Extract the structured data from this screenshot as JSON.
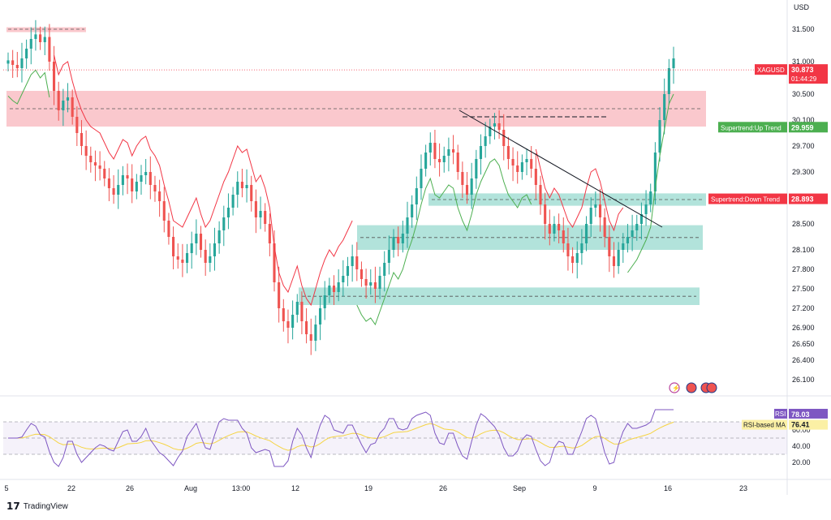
{
  "currency": "USD",
  "chart_data": {
    "type": "candlestick",
    "symbol": "XAGUSD",
    "last_price": "30.873",
    "countdown": "01:44:29",
    "ylim": [
      26.0,
      31.8
    ],
    "price_ticks": [
      "31.500",
      "31.000",
      "30.500",
      "30.100",
      "29.700",
      "29.300",
      "28.900",
      "28.500",
      "28.100",
      "27.800",
      "27.500",
      "27.200",
      "26.900",
      "26.650",
      "26.400",
      "26.100"
    ],
    "price_tick_values": [
      31.5,
      31.0,
      30.5,
      30.1,
      29.7,
      29.3,
      28.9,
      28.5,
      28.1,
      27.8,
      27.5,
      27.2,
      26.9,
      26.65,
      26.4,
      26.1
    ],
    "x_ticks": [
      "5",
      "22",
      "26",
      "Aug",
      "13:00",
      "12",
      "19",
      "26",
      "Sep",
      "9",
      "16",
      "23"
    ],
    "series_close": [
      31.02,
      30.95,
      30.9,
      31.05,
      31.2,
      31.35,
      31.42,
      31.3,
      31.38,
      31.0,
      30.55,
      30.25,
      30.4,
      30.45,
      30.15,
      29.9,
      29.7,
      29.55,
      29.45,
      29.4,
      29.35,
      29.2,
      29.05,
      28.95,
      29.1,
      29.25,
      29.2,
      29.0,
      29.15,
      29.25,
      29.3,
      29.1,
      29.0,
      28.85,
      28.55,
      28.3,
      28.0,
      27.95,
      27.9,
      28.05,
      28.2,
      28.35,
      28.1,
      27.9,
      28.0,
      28.2,
      28.4,
      28.6,
      28.75,
      28.95,
      29.15,
      29.05,
      29.1,
      28.85,
      28.6,
      28.7,
      28.5,
      28.2,
      27.6,
      27.2,
      27.0,
      26.9,
      27.1,
      27.3,
      27.0,
      26.8,
      26.7,
      26.95,
      27.2,
      27.4,
      27.55,
      27.45,
      27.6,
      27.7,
      27.85,
      28.0,
      27.8,
      27.65,
      27.55,
      27.6,
      27.5,
      27.7,
      27.9,
      28.1,
      28.3,
      28.2,
      28.35,
      28.6,
      28.8,
      29.05,
      29.35,
      29.6,
      29.75,
      29.5,
      29.45,
      29.55,
      29.65,
      29.6,
      29.3,
      29.1,
      28.95,
      29.2,
      29.5,
      29.7,
      29.85,
      30.0,
      30.05,
      29.95,
      29.7,
      29.5,
      29.4,
      29.3,
      29.45,
      29.5,
      29.35,
      29.1,
      28.8,
      28.5,
      28.35,
      28.5,
      28.4,
      28.2,
      28.0,
      27.9,
      28.05,
      28.2,
      28.5,
      28.75,
      28.8,
      28.6,
      28.3,
      28.0,
      27.85,
      28.1,
      28.2,
      28.3,
      28.4,
      28.5,
      28.65,
      28.8,
      29.0,
      29.6,
      30.1,
      30.5,
      30.9,
      31.05
    ],
    "rsi": {
      "label": "RSI",
      "value": "78.03"
    },
    "rsi_ma": {
      "label": "RSI-based MA",
      "value": "76.41"
    },
    "rsi_ticks": [
      "60.00",
      "40.00",
      "20.00"
    ],
    "supertrend_up": {
      "label": "Supertrend:Up Trend",
      "value": "29.959"
    },
    "supertrend_down": {
      "label": "Supertrend:Down Trend",
      "value": "28.893"
    },
    "zones": [
      {
        "kind": "resistance",
        "low": 30.0,
        "high": 30.55
      },
      {
        "kind": "support",
        "low": 28.78,
        "high": 28.97
      },
      {
        "kind": "support",
        "low": 28.1,
        "high": 28.48
      },
      {
        "kind": "support",
        "low": 27.25,
        "high": 27.52
      }
    ],
    "colors": {
      "up": "#26a69a",
      "down": "#ef5350",
      "supertrend_up": "#4caf50",
      "supertrend_down": "#f23645",
      "rsi": "#7e57c2",
      "rsi_ma": "#f5d442",
      "zone_red": "#f7a4ab",
      "zone_green": "#7fd0c3"
    }
  },
  "branding": {
    "logo_mark": "17",
    "name": "TradingView"
  },
  "icons": [
    "lightning-icon",
    "us-flag-icon",
    "us-flag-icon"
  ]
}
